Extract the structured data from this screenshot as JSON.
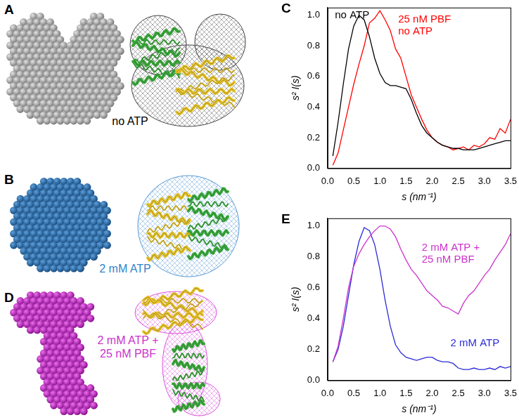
{
  "panels": [
    {
      "letter": "A",
      "label": "no ATP",
      "color": "#000000"
    },
    {
      "letter": "B",
      "label": "2 mM ATP",
      "color": "#2f86c8"
    },
    {
      "letter": "D",
      "label": "2 mM ATP +\n25 nM PBF",
      "color": "#cc33cc"
    }
  ],
  "chart_data": [
    {
      "panel": "C",
      "type": "line",
      "xlabel": "s (nm⁻¹)",
      "ylabel": "s² I(s)",
      "x": [
        0.1,
        0.2,
        0.3,
        0.4,
        0.5,
        0.6,
        0.7,
        0.8,
        0.9,
        1.0,
        1.1,
        1.2,
        1.3,
        1.4,
        1.5,
        1.6,
        1.7,
        1.8,
        1.9,
        2.0,
        2.1,
        2.2,
        2.3,
        2.4,
        2.5,
        2.6,
        2.7,
        2.8,
        2.9,
        3.0,
        3.1,
        3.2,
        3.3,
        3.4,
        3.5
      ],
      "series": [
        {
          "name": "no ATP",
          "color": "#000000",
          "values": [
            0.08,
            0.3,
            0.55,
            0.78,
            0.93,
            1.0,
            0.97,
            0.86,
            0.72,
            0.62,
            0.56,
            0.54,
            0.54,
            0.53,
            0.52,
            0.45,
            0.36,
            0.28,
            0.23,
            0.2,
            0.17,
            0.15,
            0.14,
            0.13,
            0.13,
            0.12,
            0.12,
            0.12,
            0.13,
            0.14,
            0.15,
            0.16,
            0.17,
            0.18,
            0.18
          ]
        },
        {
          "name": "25 nM PBF\nno ATP",
          "color": "#ff0000",
          "values": [
            0.02,
            0.1,
            0.25,
            0.4,
            0.55,
            0.68,
            0.8,
            0.95,
            0.98,
            1.03,
            0.97,
            0.9,
            0.78,
            0.72,
            0.6,
            0.48,
            0.4,
            0.32,
            0.25,
            0.2,
            0.17,
            0.15,
            0.14,
            0.12,
            0.13,
            0.14,
            0.12,
            0.15,
            0.14,
            0.16,
            0.2,
            0.19,
            0.26,
            0.23,
            0.32
          ]
        }
      ],
      "xlim": [
        0,
        3.5
      ],
      "xticks": [
        {
          "value": 0,
          "label": "0.0"
        },
        0.5,
        {
          "value": 1,
          "label": "1.0"
        },
        1.5,
        {
          "value": 2,
          "label": "2.0"
        },
        2.5,
        {
          "value": 3,
          "label": "3.0"
        },
        3.5
      ],
      "ylim": [
        0,
        1.05
      ],
      "yticks": [
        {
          "value": 0,
          "label": "0.0"
        },
        0.2,
        0.4,
        0.6,
        0.8,
        {
          "value": 1,
          "label": "1.0"
        }
      ],
      "grid": false
    },
    {
      "panel": "E",
      "type": "line",
      "xlabel": "s (nm⁻¹)",
      "ylabel": "s² I(s)",
      "x": [
        0.1,
        0.2,
        0.3,
        0.4,
        0.5,
        0.6,
        0.7,
        0.8,
        0.9,
        1.0,
        1.1,
        1.2,
        1.3,
        1.4,
        1.5,
        1.6,
        1.7,
        1.8,
        1.9,
        2.0,
        2.1,
        2.2,
        2.3,
        2.4,
        2.5,
        2.6,
        2.7,
        2.8,
        2.9,
        3.0,
        3.1,
        3.2,
        3.3,
        3.4,
        3.5
      ],
      "series": [
        {
          "name": "2 mM ATP +\n25 nM PBF",
          "color": "#cc33cc",
          "values": [
            0.12,
            0.22,
            0.4,
            0.6,
            0.74,
            0.82,
            0.88,
            0.93,
            0.97,
            1.0,
            1.0,
            0.98,
            0.93,
            0.85,
            0.78,
            0.72,
            0.68,
            0.63,
            0.58,
            0.55,
            0.52,
            0.48,
            0.47,
            0.45,
            0.43,
            0.5,
            0.55,
            0.58,
            0.63,
            0.68,
            0.72,
            0.78,
            0.83,
            0.88,
            0.95
          ]
        },
        {
          "name": "2 mM ATP",
          "color": "#2b2bd9",
          "values": [
            0.12,
            0.2,
            0.35,
            0.55,
            0.75,
            0.9,
            0.99,
            0.97,
            0.88,
            0.72,
            0.52,
            0.35,
            0.23,
            0.18,
            0.15,
            0.14,
            0.13,
            0.14,
            0.15,
            0.15,
            0.13,
            0.12,
            0.12,
            0.11,
            0.08,
            0.07,
            0.07,
            0.08,
            0.07,
            0.07,
            0.08,
            0.07,
            0.09,
            0.08,
            0.09
          ]
        }
      ],
      "xlim": [
        0,
        3.5
      ],
      "xticks": [
        {
          "value": 0,
          "label": "0.0"
        },
        0.5,
        {
          "value": 1,
          "label": "1.0"
        },
        1.5,
        {
          "value": 2,
          "label": "2.0"
        },
        2.5,
        {
          "value": 3,
          "label": "3.0"
        },
        3.5
      ],
      "ylim": [
        0,
        1.05
      ],
      "yticks": [
        {
          "value": 0,
          "label": "0.0"
        },
        0.2,
        0.4,
        0.6,
        0.8,
        {
          "value": 1,
          "label": "1.0"
        }
      ],
      "grid": false
    }
  ]
}
